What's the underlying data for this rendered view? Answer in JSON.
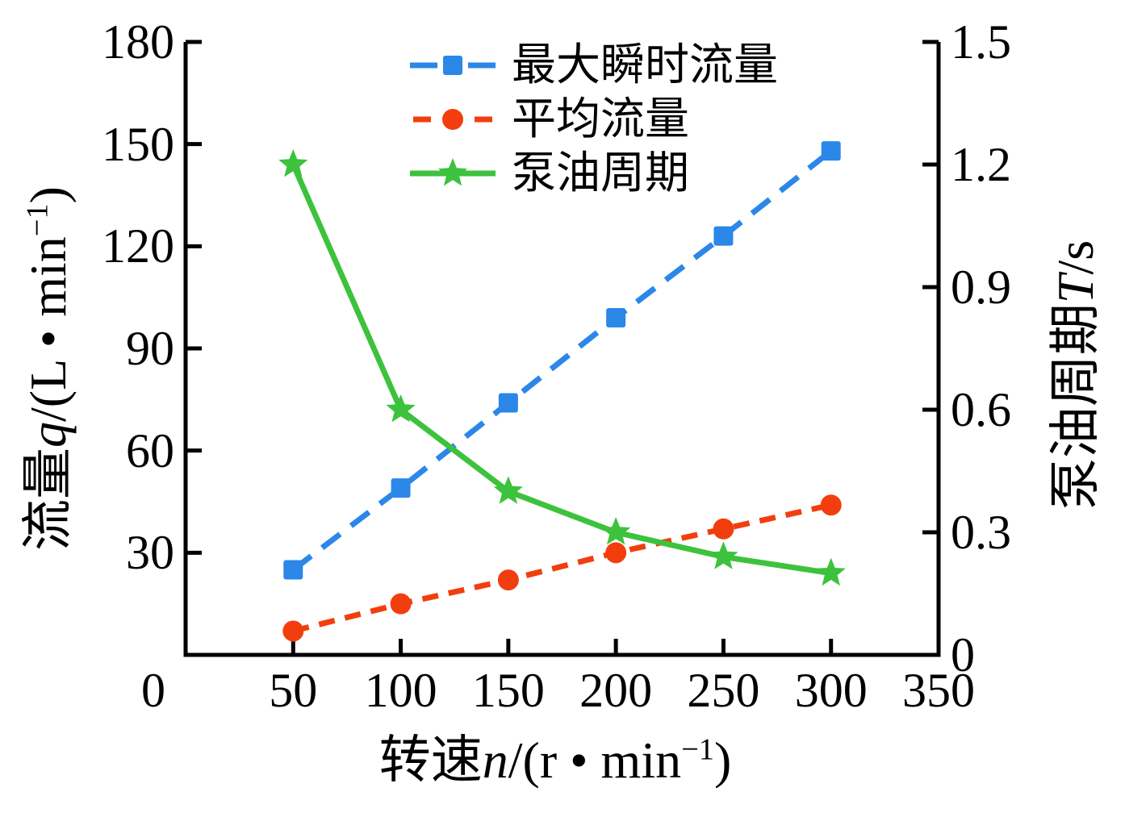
{
  "figure": {
    "background": "#ffffff"
  },
  "chart_data": {
    "type": "line",
    "x_values": [
      50,
      100,
      150,
      200,
      250,
      300
    ],
    "series": [
      {
        "name": "最大瞬时流量",
        "axis": "left",
        "values": [
          25,
          49,
          74,
          99,
          123,
          148
        ],
        "color": "#2B87E8",
        "marker": "square",
        "line_style": "dashed",
        "dash": "28 17"
      },
      {
        "name": "平均流量",
        "axis": "left",
        "values": [
          7,
          15,
          22,
          30,
          37,
          44
        ],
        "color": "#F23E0E",
        "marker": "circle",
        "line_style": "dashed",
        "dash": "20 13"
      },
      {
        "name": "泵油周期",
        "axis": "right",
        "values": [
          1.2,
          0.6,
          0.4,
          0.3,
          0.24,
          0.2
        ],
        "color": "#3DC23D",
        "marker": "star",
        "line_style": "solid",
        "dash": ""
      }
    ],
    "x_axis": {
      "label": "转速n/(r • min⁻¹)",
      "range": [
        0,
        350
      ],
      "tick_values": [
        0,
        50,
        100,
        150,
        200,
        250,
        300,
        350
      ],
      "tick_labels": [
        "0",
        "50",
        "100",
        "150",
        "200",
        "250",
        "300",
        "350"
      ]
    },
    "y_axis_left": {
      "label": "流量q/(L • min⁻¹)",
      "range": [
        0,
        180
      ],
      "tick_values": [
        30,
        60,
        90,
        120,
        150,
        180
      ],
      "tick_labels": [
        "30",
        "60",
        "90",
        "120",
        "150",
        "180"
      ]
    },
    "y_axis_right": {
      "label": "泵油周期T/s",
      "range": [
        0,
        1.5
      ],
      "tick_values": [
        0,
        0.3,
        0.6,
        0.9,
        1.2,
        1.5
      ],
      "tick_labels": [
        "0",
        "0.3",
        "0.6",
        "0.9",
        "1.2",
        "1.5"
      ]
    },
    "legend_position": "top-center-inside",
    "grid": false
  },
  "labels": {
    "x": {
      "cjk": "转速",
      "var": "n",
      "mid": "/(r • min",
      "sup": "−1",
      "end": ")"
    },
    "y_left": {
      "cjk": "流量",
      "var": "q",
      "mid": "/(L • min",
      "sup": "−1",
      "end": ")"
    },
    "y_right": {
      "cjk": "泵油周期",
      "var": "T",
      "mid": "/s"
    }
  },
  "legend": {
    "items": [
      {
        "label": "最大瞬时流量"
      },
      {
        "label": "平均流量"
      },
      {
        "label": "泵油周期"
      }
    ]
  }
}
